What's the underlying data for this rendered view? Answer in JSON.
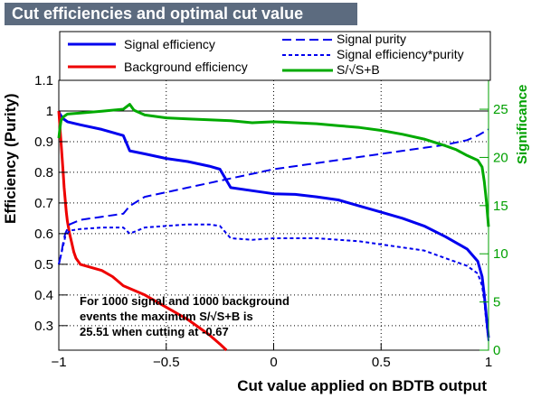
{
  "chart_data": {
    "type": "line",
    "title": "Cut efficiencies and optimal cut value",
    "xlabel": "Cut value applied on BDTB output",
    "ylabel": "Efficiency (Purity)",
    "ylabel_right": "Significance",
    "xlim": [
      -1,
      1
    ],
    "ylim": [
      0.22,
      1.1
    ],
    "ylim_right": [
      0,
      28
    ],
    "x_ticks": [
      {
        "v": -1,
        "label": "−1"
      },
      {
        "v": -0.5,
        "label": "−0.5"
      },
      {
        "v": 0,
        "label": "0"
      },
      {
        "v": 0.5,
        "label": "0.5"
      },
      {
        "v": 1,
        "label": "1"
      }
    ],
    "y_ticks": [
      {
        "v": 0.3,
        "label": "0.3"
      },
      {
        "v": 0.4,
        "label": "0.4"
      },
      {
        "v": 0.5,
        "label": "0.5"
      },
      {
        "v": 0.6,
        "label": "0.6"
      },
      {
        "v": 0.7,
        "label": "0.7"
      },
      {
        "v": 0.8,
        "label": "0.8"
      },
      {
        "v": 0.9,
        "label": "0.9"
      },
      {
        "v": 1.0,
        "label": "1"
      },
      {
        "v": 1.1,
        "label": "1.1"
      }
    ],
    "y_ticks_right": [
      {
        "v": 0,
        "label": "0"
      },
      {
        "v": 5,
        "label": "5"
      },
      {
        "v": 10,
        "label": "10"
      },
      {
        "v": 15,
        "label": "15"
      },
      {
        "v": 20,
        "label": "20"
      },
      {
        "v": 25,
        "label": "25"
      }
    ],
    "grid": true,
    "reference_line_y": 1.0,
    "legend_left": [
      {
        "name": "Signal efficiency",
        "style": "solid",
        "color": "#0000ee"
      },
      {
        "name": "Background efficiency",
        "style": "solid",
        "color": "#ee0000"
      }
    ],
    "legend_right": [
      {
        "name": "Signal purity",
        "style": "dashed",
        "color": "#0000ee"
      },
      {
        "name": "Signal efficiency*purity",
        "style": "dotted",
        "color": "#0000ee"
      },
      {
        "name": "S/√S+B",
        "style": "solid",
        "color": "#00aa00"
      }
    ],
    "annotation": [
      "For 1000 signal and 1000 background",
      "events the maximum S/√S+B is",
      "25.51 when cutting at -0.67"
    ],
    "series": [
      {
        "name": "Signal efficiency",
        "axis": "left",
        "style": "solid",
        "color": "#0000ee",
        "x": [
          -1.0,
          -0.995,
          -0.99,
          -0.98,
          -0.96,
          -0.9,
          -0.8,
          -0.7,
          -0.67,
          -0.6,
          -0.5,
          -0.4,
          -0.3,
          -0.25,
          -0.2,
          -0.1,
          0.0,
          0.1,
          0.2,
          0.3,
          0.4,
          0.5,
          0.6,
          0.7,
          0.8,
          0.9,
          0.95,
          0.97,
          0.98,
          0.99,
          1.0
        ],
        "y": [
          1.0,
          0.99,
          0.985,
          0.975,
          0.965,
          0.955,
          0.94,
          0.92,
          0.87,
          0.86,
          0.845,
          0.835,
          0.82,
          0.81,
          0.75,
          0.74,
          0.73,
          0.728,
          0.72,
          0.71,
          0.69,
          0.67,
          0.65,
          0.625,
          0.59,
          0.55,
          0.51,
          0.46,
          0.4,
          0.33,
          0.26
        ]
      },
      {
        "name": "Background efficiency",
        "axis": "left",
        "style": "solid",
        "color": "#ee0000",
        "x": [
          -1.0,
          -0.995,
          -0.99,
          -0.985,
          -0.98,
          -0.975,
          -0.97,
          -0.965,
          -0.96,
          -0.95,
          -0.94,
          -0.93,
          -0.92,
          -0.9,
          -0.85,
          -0.8,
          -0.75,
          -0.7,
          -0.6,
          -0.5,
          -0.4,
          -0.3,
          -0.25,
          -0.22
        ],
        "y": [
          1.0,
          0.95,
          0.9,
          0.85,
          0.8,
          0.75,
          0.71,
          0.67,
          0.64,
          0.6,
          0.57,
          0.54,
          0.52,
          0.5,
          0.49,
          0.48,
          0.46,
          0.43,
          0.4,
          0.36,
          0.32,
          0.27,
          0.24,
          0.22
        ]
      },
      {
        "name": "Signal purity",
        "axis": "left",
        "style": "dashed",
        "color": "#0000ee",
        "x": [
          -1.0,
          -0.99,
          -0.98,
          -0.97,
          -0.95,
          -0.9,
          -0.8,
          -0.7,
          -0.67,
          -0.6,
          -0.5,
          -0.4,
          -0.3,
          -0.2,
          -0.1,
          0.0,
          0.1,
          0.2,
          0.3,
          0.4,
          0.5,
          0.6,
          0.7,
          0.8,
          0.9,
          0.95,
          1.0
        ],
        "y": [
          0.5,
          0.53,
          0.57,
          0.6,
          0.63,
          0.645,
          0.655,
          0.665,
          0.69,
          0.72,
          0.735,
          0.75,
          0.765,
          0.78,
          0.795,
          0.81,
          0.82,
          0.83,
          0.84,
          0.85,
          0.86,
          0.87,
          0.88,
          0.89,
          0.905,
          0.92,
          0.94
        ]
      },
      {
        "name": "Signal efficiency*purity",
        "axis": "left",
        "style": "dotted",
        "color": "#0000ee",
        "x": [
          -1.0,
          -0.99,
          -0.98,
          -0.97,
          -0.95,
          -0.9,
          -0.8,
          -0.7,
          -0.67,
          -0.6,
          -0.5,
          -0.4,
          -0.3,
          -0.25,
          -0.2,
          -0.1,
          0.0,
          0.1,
          0.2,
          0.3,
          0.4,
          0.5,
          0.6,
          0.7,
          0.8,
          0.9,
          0.95,
          0.97,
          0.98,
          0.99,
          1.0
        ],
        "y": [
          0.5,
          0.53,
          0.56,
          0.59,
          0.61,
          0.615,
          0.62,
          0.62,
          0.6,
          0.62,
          0.625,
          0.63,
          0.63,
          0.625,
          0.585,
          0.58,
          0.585,
          0.585,
          0.585,
          0.58,
          0.575,
          0.565,
          0.555,
          0.545,
          0.52,
          0.495,
          0.47,
          0.43,
          0.38,
          0.31,
          0.25
        ]
      },
      {
        "name": "S/√S+B",
        "axis": "right",
        "style": "solid",
        "color": "#00aa00",
        "x": [
          -1.0,
          -0.995,
          -0.99,
          -0.98,
          -0.96,
          -0.9,
          -0.8,
          -0.7,
          -0.67,
          -0.65,
          -0.6,
          -0.5,
          -0.4,
          -0.3,
          -0.2,
          -0.1,
          0.0,
          0.1,
          0.2,
          0.3,
          0.4,
          0.5,
          0.6,
          0.7,
          0.8,
          0.85,
          0.9,
          0.95,
          0.97,
          0.98,
          0.99,
          1.0
        ],
        "y": [
          22.0,
          23.0,
          23.8,
          24.2,
          24.5,
          24.6,
          24.8,
          25.0,
          25.51,
          24.9,
          24.4,
          24.1,
          24.0,
          23.9,
          23.8,
          23.6,
          23.7,
          23.6,
          23.5,
          23.3,
          23.1,
          22.8,
          22.4,
          21.9,
          21.2,
          20.8,
          20.2,
          19.7,
          19.0,
          17.5,
          15.5,
          12.8
        ]
      }
    ]
  }
}
